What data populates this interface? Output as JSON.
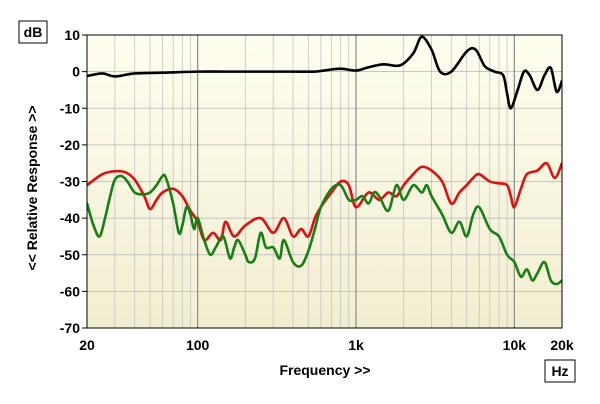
{
  "chart_data": {
    "type": "line",
    "x_unit": "Hz",
    "y_unit": "dB",
    "xlabel": "Frequency >>",
    "ylabel": "<< Relative Response >>",
    "x_scale": "log",
    "xlim": [
      20,
      20000
    ],
    "ylim": [
      -70,
      10
    ],
    "x_ticks": [
      {
        "value": 20,
        "label": "20"
      },
      {
        "value": 100,
        "label": "100"
      },
      {
        "value": 1000,
        "label": "1k"
      },
      {
        "value": 10000,
        "label": "10k"
      },
      {
        "value": 20000,
        "label": "20k"
      }
    ],
    "y_ticks": [
      {
        "value": 10,
        "label": "10"
      },
      {
        "value": 0,
        "label": "0"
      },
      {
        "value": -10,
        "label": "-10"
      },
      {
        "value": -20,
        "label": "-20"
      },
      {
        "value": -30,
        "label": "-30"
      },
      {
        "value": -40,
        "label": "-40"
      },
      {
        "value": -50,
        "label": "-50"
      },
      {
        "value": -60,
        "label": "-60"
      },
      {
        "value": -70,
        "label": "-70"
      }
    ],
    "background": {
      "top": "#fefef0",
      "bottom": "#f2eed0"
    },
    "grid": true,
    "series": [
      {
        "color": "#000000",
        "points": [
          [
            20,
            -1.2
          ],
          [
            25,
            -0.5
          ],
          [
            30,
            -1.3
          ],
          [
            40,
            -0.5
          ],
          [
            60,
            -0.3
          ],
          [
            100,
            0
          ],
          [
            150,
            0
          ],
          [
            250,
            0
          ],
          [
            400,
            0
          ],
          [
            550,
            0
          ],
          [
            650,
            0.4
          ],
          [
            800,
            0.8
          ],
          [
            1000,
            0.3
          ],
          [
            1200,
            1.2
          ],
          [
            1500,
            2
          ],
          [
            1900,
            1.7
          ],
          [
            2300,
            5
          ],
          [
            2600,
            9.5
          ],
          [
            3000,
            6
          ],
          [
            3400,
            0
          ],
          [
            4000,
            0
          ],
          [
            5000,
            5.5
          ],
          [
            5700,
            6
          ],
          [
            6500,
            1.5
          ],
          [
            7500,
            0
          ],
          [
            8500,
            -1
          ],
          [
            9000,
            -6
          ],
          [
            9500,
            -10
          ],
          [
            10500,
            -5
          ],
          [
            11500,
            0
          ],
          [
            12500,
            -1
          ],
          [
            14000,
            -5
          ],
          [
            15500,
            -1
          ],
          [
            17000,
            1
          ],
          [
            18500,
            -5.5
          ],
          [
            20000,
            -2.5
          ]
        ]
      },
      {
        "color": "#e01010",
        "points": [
          [
            20,
            -31
          ],
          [
            25,
            -28
          ],
          [
            30,
            -27.2
          ],
          [
            35,
            -27.5
          ],
          [
            40,
            -29.5
          ],
          [
            46,
            -34
          ],
          [
            50,
            -37.5
          ],
          [
            55,
            -35
          ],
          [
            60,
            -33
          ],
          [
            70,
            -32
          ],
          [
            80,
            -34
          ],
          [
            90,
            -38
          ],
          [
            100,
            -41
          ],
          [
            110,
            -46
          ],
          [
            125,
            -44
          ],
          [
            140,
            -46
          ],
          [
            150,
            -41
          ],
          [
            170,
            -45
          ],
          [
            200,
            -42
          ],
          [
            250,
            -40
          ],
          [
            300,
            -44
          ],
          [
            350,
            -40
          ],
          [
            400,
            -45
          ],
          [
            450,
            -43
          ],
          [
            500,
            -45
          ],
          [
            550,
            -40
          ],
          [
            600,
            -37
          ],
          [
            700,
            -33
          ],
          [
            800,
            -30
          ],
          [
            900,
            -31
          ],
          [
            1000,
            -37
          ],
          [
            1200,
            -33
          ],
          [
            1400,
            -35
          ],
          [
            1600,
            -33
          ],
          [
            1800,
            -34
          ],
          [
            2000,
            -31
          ],
          [
            2300,
            -28
          ],
          [
            2600,
            -26
          ],
          [
            3000,
            -27
          ],
          [
            3500,
            -30
          ],
          [
            4000,
            -36
          ],
          [
            4500,
            -33
          ],
          [
            5000,
            -31
          ],
          [
            5500,
            -29
          ],
          [
            6000,
            -28
          ],
          [
            7000,
            -30
          ],
          [
            8000,
            -30.5
          ],
          [
            9000,
            -31
          ],
          [
            9500,
            -34
          ],
          [
            10000,
            -37
          ],
          [
            11000,
            -32
          ],
          [
            12000,
            -28
          ],
          [
            14000,
            -27
          ],
          [
            16000,
            -25
          ],
          [
            18000,
            -29
          ],
          [
            20000,
            -25
          ]
        ]
      },
      {
        "color": "#168016",
        "points": [
          [
            20,
            -36
          ],
          [
            22,
            -42
          ],
          [
            24,
            -45
          ],
          [
            26,
            -40
          ],
          [
            28,
            -34
          ],
          [
            30,
            -29.5
          ],
          [
            33,
            -28.5
          ],
          [
            36,
            -30
          ],
          [
            40,
            -33
          ],
          [
            45,
            -33.5
          ],
          [
            50,
            -33
          ],
          [
            55,
            -31
          ],
          [
            60,
            -28.5
          ],
          [
            63,
            -29
          ],
          [
            70,
            -36
          ],
          [
            76,
            -44
          ],
          [
            80,
            -42
          ],
          [
            85,
            -37
          ],
          [
            90,
            -39
          ],
          [
            95,
            -43
          ],
          [
            100,
            -40
          ],
          [
            110,
            -46
          ],
          [
            120,
            -50
          ],
          [
            130,
            -48
          ],
          [
            145,
            -45
          ],
          [
            160,
            -51
          ],
          [
            170,
            -48
          ],
          [
            180,
            -46
          ],
          [
            200,
            -50
          ],
          [
            210,
            -52
          ],
          [
            230,
            -51
          ],
          [
            250,
            -44
          ],
          [
            270,
            -48
          ],
          [
            300,
            -48
          ],
          [
            330,
            -51
          ],
          [
            350,
            -46
          ],
          [
            400,
            -52
          ],
          [
            450,
            -53
          ],
          [
            500,
            -49
          ],
          [
            550,
            -43
          ],
          [
            600,
            -37
          ],
          [
            700,
            -32
          ],
          [
            800,
            -31
          ],
          [
            900,
            -35
          ],
          [
            1000,
            -35
          ],
          [
            1100,
            -34
          ],
          [
            1200,
            -36
          ],
          [
            1300,
            -33
          ],
          [
            1400,
            -34
          ],
          [
            1600,
            -38
          ],
          [
            1800,
            -31
          ],
          [
            2000,
            -35
          ],
          [
            2300,
            -31
          ],
          [
            2600,
            -33
          ],
          [
            2800,
            -31
          ],
          [
            3000,
            -34
          ],
          [
            3500,
            -39
          ],
          [
            4000,
            -44
          ],
          [
            4500,
            -41
          ],
          [
            5000,
            -45
          ],
          [
            5500,
            -39
          ],
          [
            6000,
            -37
          ],
          [
            7000,
            -43
          ],
          [
            8000,
            -45
          ],
          [
            9000,
            -50
          ],
          [
            10000,
            -52
          ],
          [
            11000,
            -56
          ],
          [
            12000,
            -54
          ],
          [
            13000,
            -57
          ],
          [
            14000,
            -55
          ],
          [
            15500,
            -52
          ],
          [
            17000,
            -57
          ],
          [
            18500,
            -58
          ],
          [
            20000,
            -57
          ]
        ]
      }
    ]
  }
}
